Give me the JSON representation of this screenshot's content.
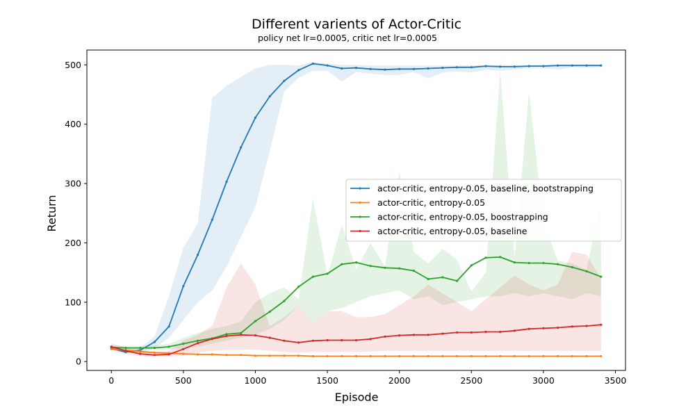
{
  "chart_data": {
    "type": "line",
    "title": "Different varients of Actor-Critic",
    "subtitle": "policy net lr=0.0005, critic net lr=0.0005",
    "xlabel": "Episode",
    "ylabel": "Return",
    "xlim": [
      -170,
      3570
    ],
    "ylim": [
      -15,
      525
    ],
    "xticks": [
      0,
      500,
      1000,
      1500,
      2000,
      2500,
      3000,
      3500
    ],
    "yticks": [
      0,
      100,
      200,
      300,
      400,
      500
    ],
    "grid": false,
    "legend_position": "center-right",
    "x": [
      0,
      100,
      200,
      300,
      400,
      500,
      600,
      700,
      800,
      900,
      1000,
      1100,
      1200,
      1300,
      1400,
      1500,
      1600,
      1700,
      1800,
      1900,
      2000,
      2100,
      2200,
      2300,
      2400,
      2500,
      2600,
      2700,
      2800,
      2900,
      3000,
      3100,
      3200,
      3300,
      3400
    ],
    "series": [
      {
        "name": "actor-critic, entropy-0.05, baseline, bootstrapping",
        "color": "#1f77b4",
        "values": [
          22,
          16,
          19,
          33,
          59,
          127,
          180,
          239,
          303,
          361,
          411,
          447,
          473,
          491,
          502,
          499,
          494,
          495,
          493,
          492,
          493,
          493,
          494,
          495,
          496,
          496,
          498,
          497,
          497,
          498,
          498,
          499,
          499,
          499,
          499
        ],
        "lower": [
          20,
          14,
          15,
          22,
          40,
          70,
          100,
          120,
          160,
          210,
          260,
          355,
          455,
          478,
          490,
          490,
          472,
          488,
          485,
          483,
          483,
          488,
          477,
          487,
          489,
          487,
          492,
          490,
          492,
          494,
          494,
          492,
          496,
          495,
          496
        ],
        "upper": [
          25,
          18,
          24,
          42,
          110,
          192,
          233,
          444,
          465,
          480,
          494,
          500,
          500,
          499,
          505,
          502,
          500,
          500,
          499,
          499,
          499,
          499,
          499,
          499,
          499,
          499,
          499,
          499,
          499,
          499,
          500,
          500,
          500,
          500,
          500
        ]
      },
      {
        "name": "actor-critic, entropy-0.05",
        "color": "#ff7f0e",
        "values": [
          21,
          19,
          17,
          15,
          14,
          13,
          12,
          12,
          11,
          11,
          10,
          10,
          10,
          10,
          9,
          9,
          9,
          9,
          9,
          9,
          9,
          9,
          9,
          9,
          9,
          9,
          9,
          9,
          9,
          9,
          9,
          9,
          9,
          9,
          9
        ],
        "lower": [
          19,
          17,
          15,
          13,
          12,
          11,
          11,
          10,
          10,
          10,
          9,
          9,
          9,
          9,
          9,
          9,
          9,
          9,
          9,
          9,
          9,
          9,
          9,
          9,
          9,
          9,
          9,
          9,
          9,
          9,
          9,
          9,
          9,
          9,
          9
        ],
        "upper": [
          23,
          21,
          19,
          17,
          16,
          15,
          14,
          13,
          12,
          12,
          11,
          11,
          11,
          10,
          10,
          10,
          10,
          10,
          10,
          10,
          10,
          10,
          10,
          10,
          10,
          10,
          10,
          10,
          10,
          10,
          10,
          10,
          10,
          10,
          10
        ]
      },
      {
        "name": "actor-critic, entropy-0.05, boostrapping",
        "color": "#2ca02c",
        "values": [
          24,
          23,
          23,
          23,
          25,
          30,
          35,
          39,
          46,
          48,
          68,
          84,
          102,
          126,
          143,
          148,
          164,
          167,
          161,
          158,
          157,
          153,
          139,
          142,
          136,
          162,
          175,
          176,
          167,
          166,
          166,
          164,
          159,
          152,
          143
        ],
        "lower": [
          20,
          20,
          20,
          20,
          20,
          22,
          25,
          30,
          35,
          40,
          45,
          55,
          70,
          95,
          65,
          85,
          90,
          100,
          110,
          115,
          120,
          105,
          110,
          95,
          100,
          105,
          110,
          110,
          115,
          110,
          115,
          110,
          105,
          115,
          110
        ],
        "upper": [
          28,
          26,
          26,
          27,
          30,
          40,
          48,
          55,
          60,
          68,
          100,
          115,
          125,
          105,
          275,
          145,
          230,
          155,
          200,
          160,
          320,
          185,
          165,
          190,
          172,
          118,
          150,
          490,
          175,
          455,
          235,
          170,
          165,
          155,
          275
        ]
      },
      {
        "name": "actor-critic, entropy-0.05, baseline",
        "color": "#d62728",
        "values": [
          25,
          18,
          13,
          11,
          12,
          21,
          31,
          38,
          43,
          45,
          44,
          40,
          35,
          32,
          35,
          36,
          36,
          36,
          38,
          42,
          44,
          45,
          45,
          47,
          49,
          49,
          50,
          50,
          52,
          55,
          56,
          57,
          59,
          60,
          62
        ],
        "lower": [
          20,
          13,
          9,
          8,
          8,
          10,
          15,
          18,
          20,
          20,
          20,
          18,
          16,
          15,
          16,
          16,
          16,
          16,
          17,
          18,
          18,
          18,
          18,
          18,
          18,
          18,
          18,
          18,
          18,
          18,
          18,
          18,
          18,
          18,
          18
        ],
        "upper": [
          30,
          24,
          18,
          16,
          18,
          35,
          45,
          60,
          125,
          165,
          130,
          60,
          75,
          95,
          65,
          85,
          85,
          75,
          75,
          80,
          95,
          110,
          130,
          115,
          100,
          85,
          105,
          125,
          145,
          130,
          120,
          130,
          185,
          180,
          140
        ]
      }
    ]
  }
}
